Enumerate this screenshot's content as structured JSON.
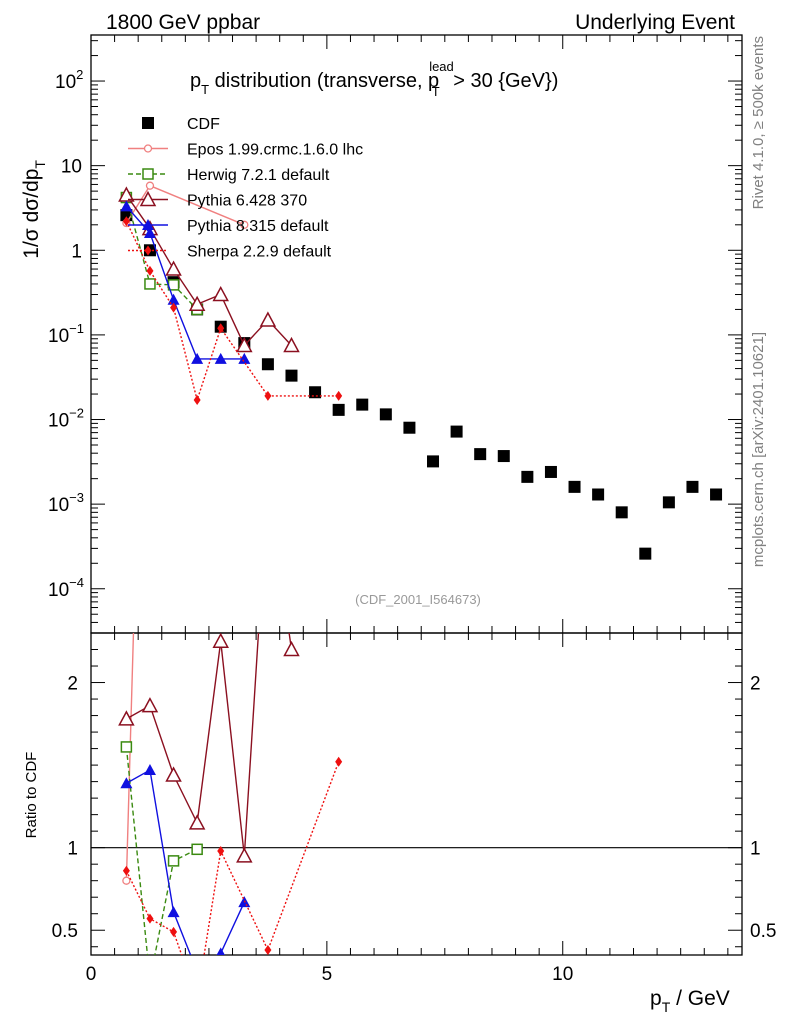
{
  "header": {
    "left": "1800 GeV ppbar",
    "right": "Underlying Event"
  },
  "side_labels": {
    "rivet": "Rivet 4.1.0, ≥ 500k events",
    "mcplots": "mcplots.cern.ch [arXiv:2401.10621]"
  },
  "analysis_id": "(CDF_2001_I564673)",
  "colors": {
    "CDF": "#000000",
    "Epos": "#f08080",
    "Herwig": "#3a8a10",
    "Pythia6": "#8b1020",
    "Pythia8": "#1010e0",
    "Sherpa": "#ee1010"
  },
  "chart_data": {
    "type": "scatter",
    "title": "p_T distribution (transverse, p_T^lead > 30 {GeV})",
    "title_parts": {
      "main": "p",
      "sub1": "T",
      "mid": " distribution (transverse, p",
      "sup2": "lead",
      "sub2": "T",
      "end": " > 30 {GeV})"
    },
    "xlabel": "p_T / GeV",
    "xlabel_parts": {
      "main": "p",
      "sub": "T",
      "end": " / GeV"
    },
    "ylabel": "1/σ  dσ/dp_T",
    "ylabel_parts": {
      "main": "1/σ  dσ/dp",
      "sub": "T"
    },
    "ratio_ylabel": "Ratio to CDF",
    "xlim": [
      0,
      13.8
    ],
    "ylim_log": [
      3e-05,
      350
    ],
    "ratio_ylim": [
      0.35,
      2.3
    ],
    "x_ticks": [
      {
        "value": 0,
        "label": "0"
      },
      {
        "value": 5,
        "label": "5"
      },
      {
        "value": 10,
        "label": "10"
      }
    ],
    "y_ticks": [
      {
        "value": 0.0001,
        "base": "10",
        "exp": "−4"
      },
      {
        "value": 0.001,
        "base": "10",
        "exp": "−3"
      },
      {
        "value": 0.01,
        "base": "10",
        "exp": "−2"
      },
      {
        "value": 0.1,
        "base": "10",
        "exp": "−1"
      },
      {
        "value": 1,
        "base": "1",
        "exp": ""
      },
      {
        "value": 10,
        "base": "10",
        "exp": ""
      },
      {
        "value": 100,
        "base": "10",
        "exp": "2"
      }
    ],
    "ratio_ticks": [
      {
        "value": 0.5,
        "label": "0.5"
      },
      {
        "value": 1,
        "label": "1"
      },
      {
        "value": 2,
        "label": "2"
      }
    ],
    "series": [
      {
        "name": "CDF",
        "key": "CDF",
        "marker": "square-filled",
        "line": "none",
        "x": [
          0.75,
          1.25,
          1.75,
          2.25,
          2.75,
          3.25,
          3.75,
          4.25,
          4.75,
          5.25,
          5.75,
          6.25,
          6.75,
          7.25,
          7.75,
          8.25,
          8.75,
          9.25,
          9.75,
          10.25,
          10.75,
          11.25,
          11.75,
          12.25,
          12.75,
          13.25
        ],
        "y": [
          2.6,
          1.0,
          0.42,
          0.2,
          0.125,
          0.08,
          0.045,
          0.033,
          0.021,
          0.013,
          0.015,
          0.0115,
          0.008,
          0.0032,
          0.0072,
          0.0039,
          0.0037,
          0.0021,
          0.0024,
          0.0016,
          0.0013,
          0.0008,
          0.00026,
          0.00105,
          0.0016,
          0.0013
        ],
        "ratio": []
      },
      {
        "name": "Epos 1.99.crmc.1.6.0 lhc",
        "key": "Epos",
        "marker": "star-open",
        "line": "solid",
        "x": [
          0.75,
          1.25,
          3.25
        ],
        "y": [
          2.1,
          5.8,
          2.0
        ],
        "ratio": [
          0.8,
          5.8,
          25
        ]
      },
      {
        "name": "Herwig 7.2.1 default",
        "key": "Herwig",
        "marker": "square-open",
        "line": "dashed",
        "x": [
          0.75,
          1.25,
          1.75,
          2.25
        ],
        "y": [
          4.2,
          0.4,
          0.39,
          0.2
        ],
        "ratio": [
          1.61,
          0.2,
          0.92,
          0.99
        ]
      },
      {
        "name": "Pythia 6.428 370",
        "key": "Pythia6",
        "marker": "triangle-open",
        "line": "solid",
        "x": [
          0.75,
          1.25,
          1.75,
          2.25,
          2.75,
          3.25,
          3.75,
          4.25
        ],
        "y": [
          4.5,
          1.8,
          0.6,
          0.23,
          0.3,
          0.075,
          0.15,
          0.075
        ],
        "ratio": [
          1.78,
          1.86,
          1.44,
          1.15,
          2.25,
          0.95,
          3.2,
          2.2
        ]
      },
      {
        "name": "Pythia 8.315 default",
        "key": "Pythia8",
        "marker": "triangle-filled",
        "line": "solid",
        "x": [
          0.75,
          1.25,
          1.75,
          2.25,
          2.75,
          3.25
        ],
        "y": [
          3.3,
          1.6,
          0.26,
          0.052,
          0.052,
          0.052
        ],
        "ratio": [
          1.39,
          1.47,
          0.61,
          0.25,
          0.36,
          0.67
        ]
      },
      {
        "name": "Sherpa 2.2.9 default",
        "key": "Sherpa",
        "marker": "diamond-filled",
        "line": "dotted",
        "x": [
          0.75,
          1.25,
          1.75,
          2.25,
          2.75,
          3.75,
          5.25
        ],
        "y": [
          2.2,
          0.57,
          0.21,
          0.017,
          0.12,
          0.019,
          0.019
        ],
        "ratio": [
          0.86,
          0.57,
          0.49,
          0.085,
          0.98,
          0.38,
          1.52
        ]
      }
    ]
  }
}
